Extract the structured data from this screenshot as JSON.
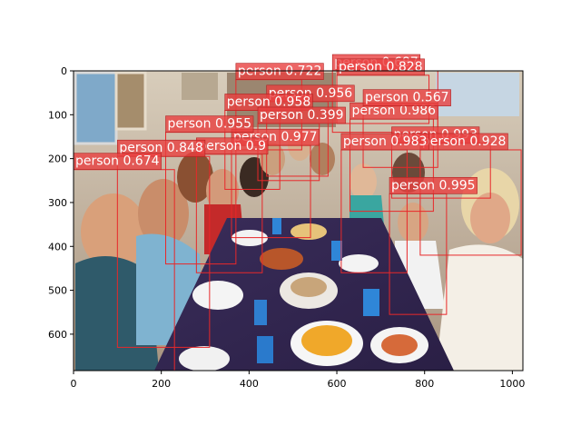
{
  "figure": {
    "image_description": "photo of a large family dinner table with people seated around it",
    "xlim": [
      0,
      1024
    ],
    "ylim": [
      683,
      0
    ],
    "x_ticks": [
      0,
      200,
      400,
      600,
      800,
      1000
    ],
    "y_ticks": [
      0,
      100,
      200,
      300,
      400,
      500,
      600
    ],
    "box_color": "#e8282a",
    "label_bg": "#e84040",
    "label_text_color": "#ffffff"
  },
  "detections": [
    {
      "label": "person 0.995",
      "x1": 720,
      "y1": 280,
      "x2": 850,
      "y2": 555
    },
    {
      "label": "person 0.993",
      "x1": 725,
      "y1": 165,
      "x2": 950,
      "y2": 290
    },
    {
      "label": "person 0.928",
      "x1": 790,
      "y1": 180,
      "x2": 1020,
      "y2": 420
    },
    {
      "label": "person 0.986",
      "x1": 630,
      "y1": 110,
      "x2": 820,
      "y2": 320
    },
    {
      "label": "person 0.567",
      "x1": 660,
      "y1": 80,
      "x2": 830,
      "y2": 220
    },
    {
      "label": "person 0.687",
      "x1": 590,
      "y1": 0,
      "x2": 830,
      "y2": 140
    },
    {
      "label": "person 0.828",
      "x1": 600,
      "y1": 10,
      "x2": 810,
      "y2": 120
    },
    {
      "label": "person 0.722",
      "x1": 370,
      "y1": 20,
      "x2": 520,
      "y2": 180
    },
    {
      "label": "person 0.956",
      "x1": 440,
      "y1": 70,
      "x2": 580,
      "y2": 240
    },
    {
      "label": "person 0.958",
      "x1": 345,
      "y1": 90,
      "x2": 470,
      "y2": 270
    },
    {
      "label": "person 0.399",
      "x1": 420,
      "y1": 120,
      "x2": 560,
      "y2": 250
    },
    {
      "label": "person 0.977",
      "x1": 360,
      "y1": 170,
      "x2": 540,
      "y2": 380
    },
    {
      "label": "person 0.955",
      "x1": 210,
      "y1": 140,
      "x2": 370,
      "y2": 440
    },
    {
      "label": "person 0.9",
      "x1": 280,
      "y1": 190,
      "x2": 430,
      "y2": 460
    },
    {
      "label": "person 0.983",
      "x1": 610,
      "y1": 180,
      "x2": 760,
      "y2": 460
    },
    {
      "label": "person 0.848",
      "x1": 100,
      "y1": 195,
      "x2": 310,
      "y2": 630
    },
    {
      "label": "person 0.674",
      "x1": 0,
      "y1": 225,
      "x2": 230,
      "y2": 683
    }
  ]
}
